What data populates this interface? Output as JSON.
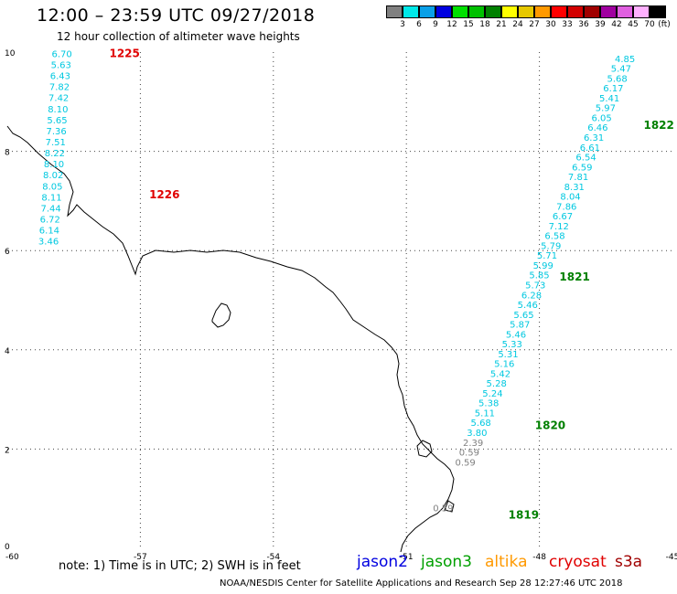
{
  "title": "12:00 – 23:59 UTC 09/27/2018",
  "subtitle": "12 hour collection of altimeter wave heights",
  "legend": {
    "unit": "(ft)",
    "bins": [
      {
        "label": "3",
        "color": "#808080"
      },
      {
        "label": "6",
        "color": "#00e8e8"
      },
      {
        "label": "9",
        "color": "#0aa0e8"
      },
      {
        "label": "12",
        "color": "#0000e0"
      },
      {
        "label": "15",
        "color": "#00e000"
      },
      {
        "label": "18",
        "color": "#00c000"
      },
      {
        "label": "21",
        "color": "#008000"
      },
      {
        "label": "24",
        "color": "#ffff00"
      },
      {
        "label": "27",
        "color": "#e6c800"
      },
      {
        "label": "30",
        "color": "#ff9900"
      },
      {
        "label": "33",
        "color": "#ff0000"
      },
      {
        "label": "36",
        "color": "#d20000"
      },
      {
        "label": "39",
        "color": "#a00000"
      },
      {
        "label": "42",
        "color": "#a000a0"
      },
      {
        "label": "45",
        "color": "#e060e0"
      },
      {
        "label": "70",
        "color": "#ffb0ff"
      },
      {
        "label": "",
        "color": "#000000"
      }
    ]
  },
  "axes": {
    "x_ticks": [
      "-60",
      "-57",
      "-54",
      "-51",
      "-48",
      "-45"
    ],
    "y_ticks": [
      "0",
      "2",
      "4",
      "6",
      "8",
      "10"
    ],
    "lon_range": [
      -60,
      -45
    ],
    "lat_range": [
      0,
      10
    ]
  },
  "tracks": [
    {
      "color": "#00c8e0",
      "values": [
        "6.70",
        "5.63",
        "6.43",
        "7.82",
        "7.42",
        "8.10",
        "5.65",
        "7.36",
        "7.51",
        "8.22",
        "8.10",
        "8.02",
        "8.05",
        "8.11",
        "7.44",
        "6.72",
        "6.14",
        "3.46"
      ],
      "start": [
        -59.0,
        9.9
      ],
      "end": [
        -59.3,
        6.12
      ],
      "labels": [
        {
          "text": "1225",
          "color": "#e00000",
          "at": [
            -57.7,
            9.9
          ]
        },
        {
          "text": "1226",
          "color": "#e00000",
          "at": [
            -56.8,
            7.05
          ]
        }
      ]
    },
    {
      "color": "#00c8e0",
      "values": [
        "4.85",
        "5.47",
        "5.68",
        "6.17",
        "5.41",
        "5.97",
        "6.05",
        "6.46",
        "6.31",
        "6.61",
        "6.54",
        "6.59",
        "7.81",
        "8.31",
        "8.04",
        "7.86",
        "6.67",
        "7.12",
        "6.58",
        "5.79",
        "5.71",
        "5.99",
        "5.85",
        "5.73",
        "6.28",
        "5.46",
        "5.65",
        "5.87",
        "5.46",
        "5.33",
        "5.31",
        "5.16",
        "5.42",
        "5.28",
        "5.24",
        "5.38",
        "5.11",
        "5.68",
        "3.80",
        "2.39",
        "0.59",
        "0.59"
      ],
      "start": [
        -46.3,
        9.8
      ],
      "end": [
        -49.9,
        1.67
      ],
      "special_colors": {
        "39": "#808080",
        "40": "#808080",
        "41": "#808080"
      },
      "labels": [
        {
          "text": "1822",
          "color": "#008000",
          "at": [
            -45.65,
            8.45
          ]
        },
        {
          "text": "1821",
          "color": "#008000",
          "at": [
            -47.55,
            5.4
          ]
        },
        {
          "text": "1820",
          "color": "#008000",
          "at": [
            -48.1,
            2.4
          ]
        },
        {
          "text": "1819",
          "color": "#008000",
          "at": [
            -48.7,
            0.6
          ]
        }
      ]
    },
    {
      "color": "#808080",
      "values": [
        "0.59"
      ],
      "start": [
        -50.4,
        0.75
      ],
      "end": [
        -50.4,
        0.75
      ],
      "labels": []
    }
  ],
  "note": "note:  1) Time is in UTC;  2) SWH is in feet",
  "satellites": [
    {
      "name": "jason2",
      "color": "#0000e0"
    },
    {
      "name": "jason3",
      "color": "#00a000"
    },
    {
      "name": "altika",
      "color": "#ff9900"
    },
    {
      "name": "cryosat",
      "color": "#e00000"
    },
    {
      "name": "s3a",
      "color": "#a00000"
    }
  ],
  "credit": "NOAA/NESDIS Center for Satellite Applications and Research    Sep 28 12:27:46 UTC 2018"
}
